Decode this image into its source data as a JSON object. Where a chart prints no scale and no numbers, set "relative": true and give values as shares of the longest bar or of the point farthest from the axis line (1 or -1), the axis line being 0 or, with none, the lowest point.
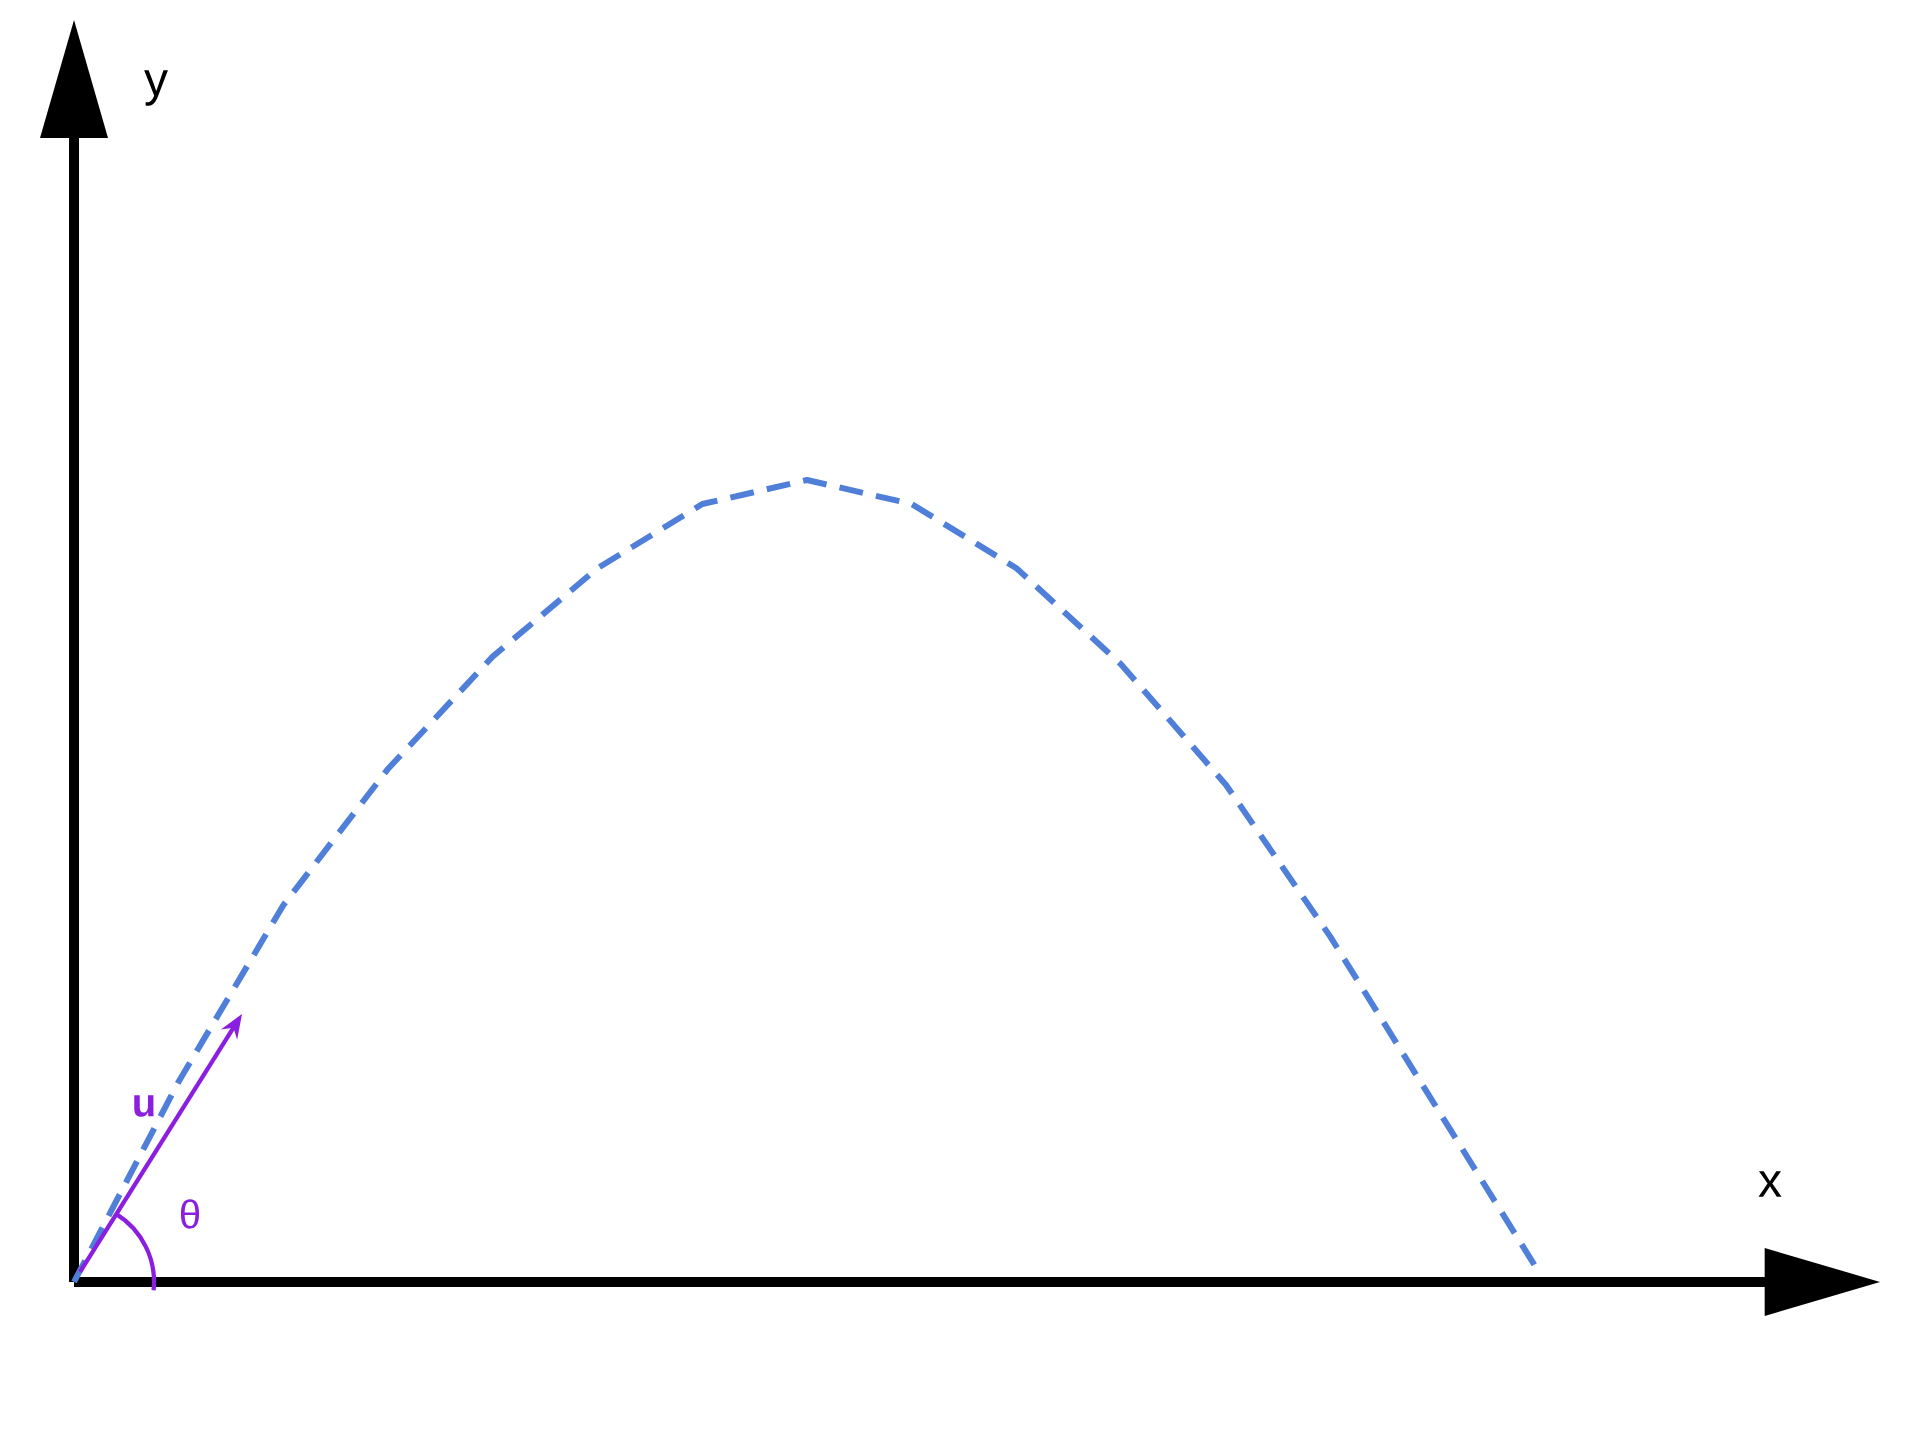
{
  "chart_data": {
    "type": "line",
    "relative": true,
    "categories": [
      null,
      null,
      null,
      null,
      null,
      null,
      null,
      null,
      null,
      null,
      null,
      null,
      null,
      null,
      null
    ],
    "values": [
      0,
      0.25,
      0.47,
      0.64,
      0.78,
      0.89,
      0.97,
      1.0,
      0.97,
      0.89,
      0.77,
      0.62,
      0.43,
      0.22,
      0.01
    ],
    "color": "#4f7fd9",
    "line_style": "dashed",
    "marker": "none",
    "annotations": [
      "y",
      "x",
      "u",
      "θ"
    ]
  }
}
